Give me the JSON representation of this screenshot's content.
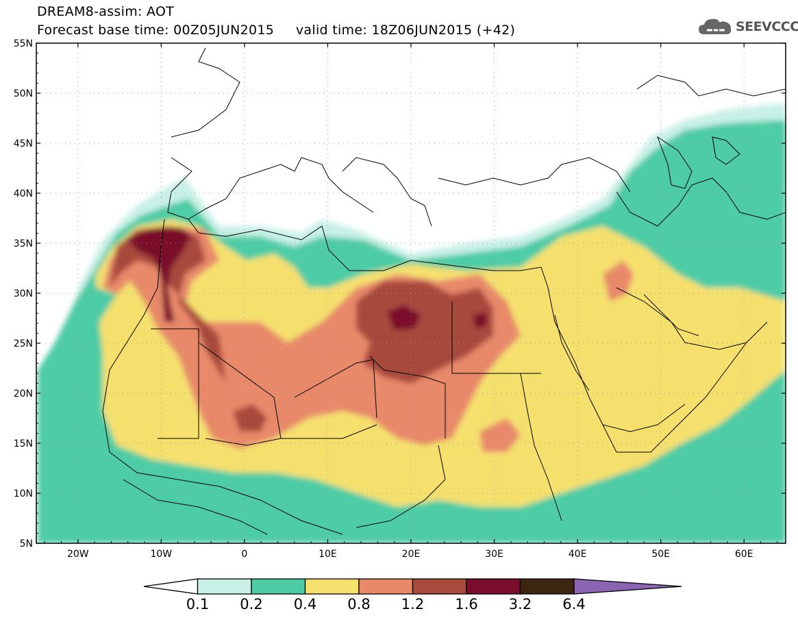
{
  "title": {
    "line1": "DREAM8-assim: AOT",
    "line2": "Forecast base time: 00Z05JUN2015     valid time: 18Z06JUN2015 (+42)"
  },
  "logo": {
    "text": "SEEVCCC",
    "icon": "cloud-icon"
  },
  "map": {
    "lon_range": [
      -25,
      65
    ],
    "lat_range": [
      5,
      55
    ],
    "lat_ticks": [
      "55N",
      "50N",
      "45N",
      "40N",
      "35N",
      "30N",
      "25N",
      "20N",
      "15N",
      "10N",
      "5N"
    ],
    "lon_ticks": [
      "20W",
      "10W",
      "0",
      "10E",
      "20E",
      "30E",
      "40E",
      "50E",
      "60E"
    ],
    "grid": true
  },
  "colorbar": {
    "labels": [
      "0.1",
      "0.2",
      "0.4",
      "0.8",
      "1.2",
      "1.6",
      "3.2",
      "6.4"
    ],
    "colors": [
      "#ffffff",
      "#c8f0e6",
      "#4ecca5",
      "#f5e06e",
      "#e8896a",
      "#a84a3c",
      "#7a0c2c",
      "#3c2612",
      "#8c64b4"
    ]
  }
}
